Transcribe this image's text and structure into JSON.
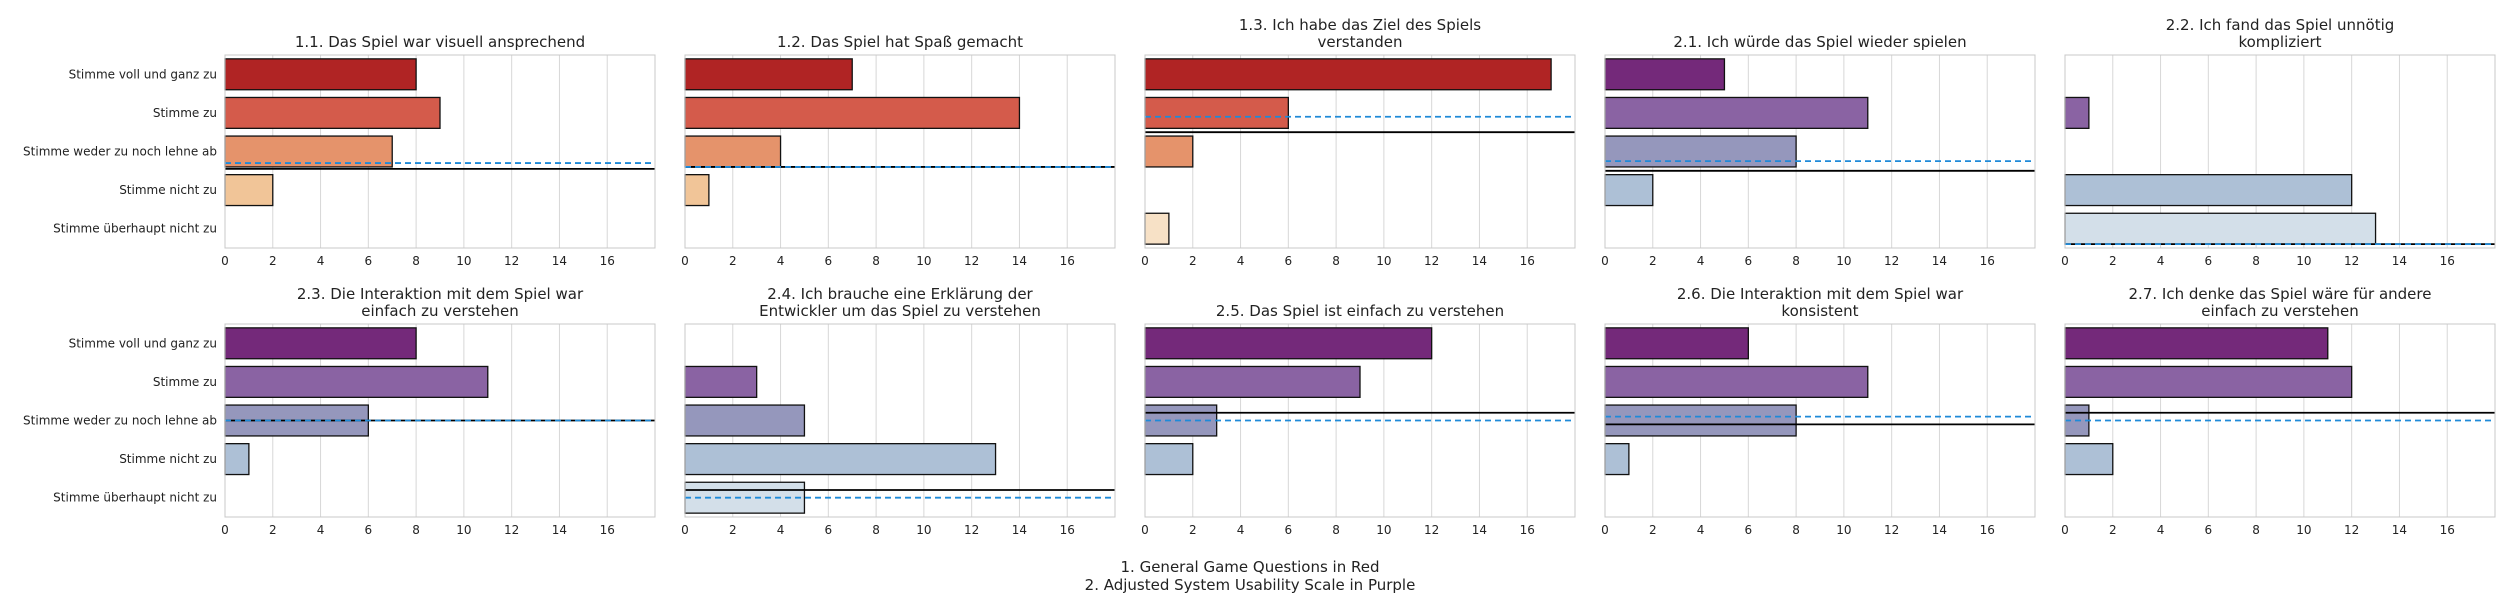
{
  "chart_data": {
    "type": "bar",
    "orientation": "horizontal",
    "categories": [
      "Stimme voll und ganz zu",
      "Stimme zu",
      "Stimme weder zu noch lehne ab",
      "Stimme nicht zu",
      "Stimme überhaupt nicht zu"
    ],
    "xlim": [
      0,
      18
    ],
    "xticks": [
      0,
      2,
      4,
      6,
      8,
      10,
      12,
      14,
      16
    ],
    "grid": true,
    "palettes": {
      "red": [
        "#b02424",
        "#d45b4b",
        "#e5936b",
        "#f1c598",
        "#f7e1c6"
      ],
      "purple": [
        "#74297a",
        "#8a63a3",
        "#9597bc",
        "#adc0d6",
        "#d3dfe9"
      ]
    },
    "reference_lines": {
      "solid_color": "#000000",
      "dashed_color": "#1f8ad8"
    },
    "panels": [
      {
        "title": [
          "1.1. Das Spiel war visuell ansprechend"
        ],
        "palette": "red",
        "values": [
          8,
          9,
          7,
          2,
          0
        ],
        "solid": 2.45,
        "dashed": 2.3
      },
      {
        "title": [
          "1.2. Das Spiel hat Spaß gemacht"
        ],
        "palette": "red",
        "values": [
          7,
          14,
          4,
          1,
          0
        ],
        "solid": 2.4,
        "dashed": 2.4
      },
      {
        "title": [
          "1.3. Ich habe das Ziel des Spiels",
          "verstanden"
        ],
        "palette": "red",
        "values": [
          17,
          6,
          2,
          0,
          1
        ],
        "solid": 1.5,
        "dashed": 1.1
      },
      {
        "title": [
          "2.1. Ich würde das Spiel wieder spielen"
        ],
        "palette": "purple",
        "values": [
          5,
          11,
          8,
          2,
          0
        ],
        "solid": 2.5,
        "dashed": 2.25
      },
      {
        "title": [
          "2.2. Ich fand das Spiel unnötig",
          "kompliziert"
        ],
        "palette": "purple",
        "values": [
          0,
          1,
          0,
          12,
          13
        ],
        "solid": 4.4,
        "dashed": 4.4
      },
      {
        "title": [
          "2.3. Die Interaktion mit dem Spiel war",
          "einfach zu verstehen"
        ],
        "palette": "purple",
        "values": [
          8,
          11,
          6,
          1,
          0
        ],
        "solid": 2.0,
        "dashed": 2.0
      },
      {
        "title": [
          "2.4. Ich brauche eine Erklärung der",
          "Entwickler um das Spiel zu verstehen"
        ],
        "palette": "purple",
        "values": [
          0,
          3,
          5,
          13,
          5
        ],
        "solid": 3.8,
        "dashed": 4.0
      },
      {
        "title": [
          "2.5. Das Spiel ist einfach zu verstehen"
        ],
        "palette": "purple",
        "values": [
          12,
          9,
          3,
          2,
          0
        ],
        "solid": 1.8,
        "dashed": 2.0
      },
      {
        "title": [
          "2.6. Die Interaktion mit dem Spiel war",
          "konsistent"
        ],
        "palette": "purple",
        "values": [
          6,
          11,
          8,
          1,
          0
        ],
        "solid": 2.1,
        "dashed": 1.9
      },
      {
        "title": [
          "2.7. Ich denke das Spiel wäre für andere",
          "einfach zu verstehen"
        ],
        "palette": "purple",
        "values": [
          11,
          12,
          1,
          2,
          0
        ],
        "solid": 1.8,
        "dashed": 2.0
      }
    ]
  },
  "footer": {
    "line1": "1. General Game Questions in Red",
    "line2": "2. Adjusted System Usability Scale in Purple"
  }
}
